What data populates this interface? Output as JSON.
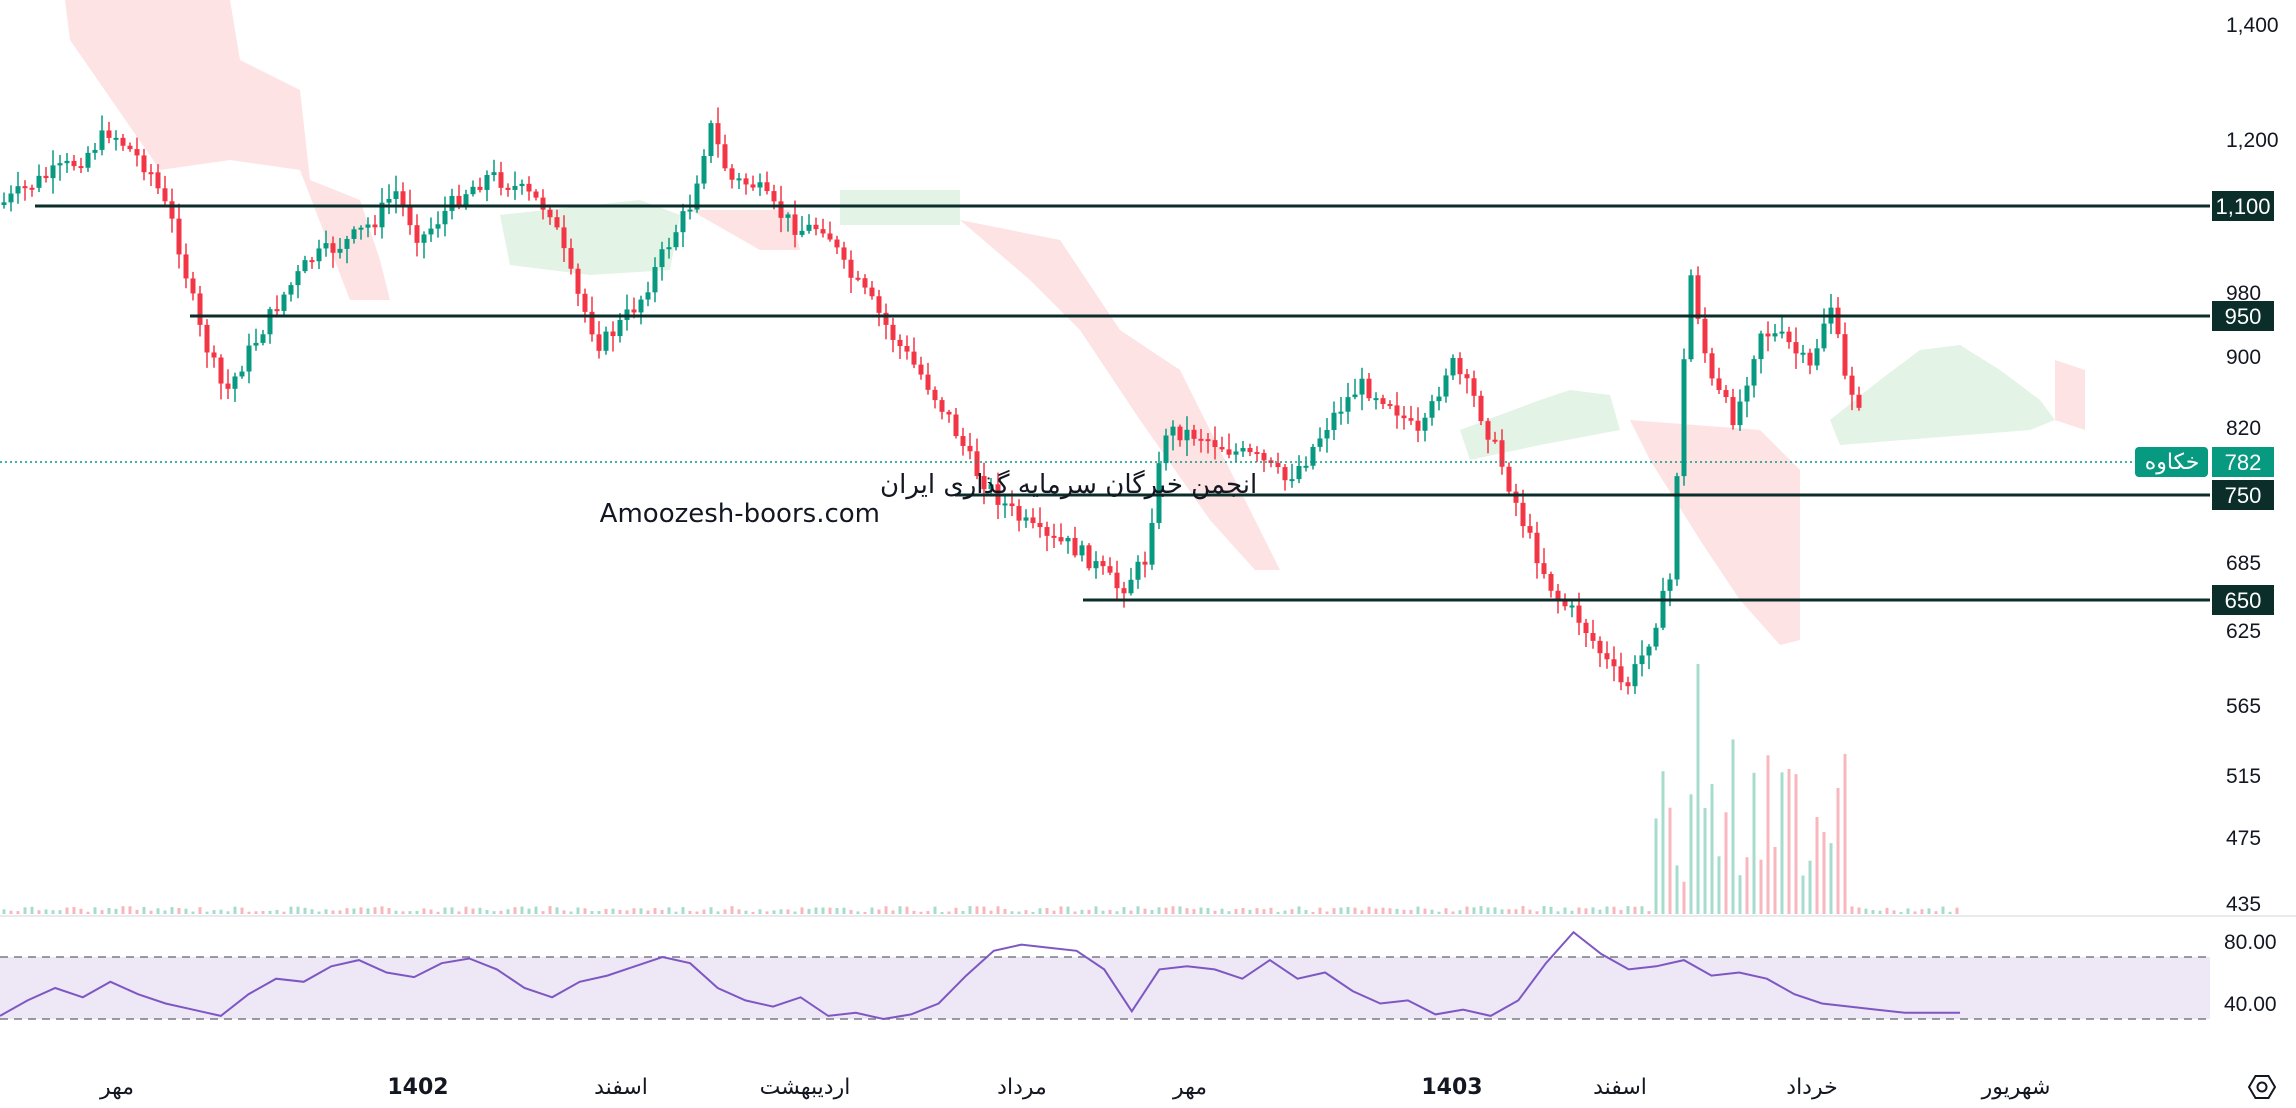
{
  "chart_data": {
    "type": "candlestick",
    "symbol": "خکاوه",
    "price_axis": {
      "ticks": [
        "1,400",
        "1,200",
        "980",
        "900",
        "820",
        "685",
        "625",
        "565",
        "515",
        "475",
        "435"
      ]
    },
    "last_price": "782",
    "horizontal_levels": [
      "1,100",
      "950",
      "750",
      "650"
    ],
    "time_axis": {
      "labels": [
        "مهر",
        "1402",
        "اسفند",
        "اردیبهشت",
        "مرداد",
        "مهر",
        "1403",
        "اسفند",
        "خرداد",
        "شهریور"
      ],
      "bold": [
        "1402",
        "1403"
      ]
    },
    "watermark": {
      "line1": "انجمن خبرگان سرمایه گذاری ایران",
      "line2": "Amoozesh-boors.com"
    },
    "indicators": {
      "ichimoku_cloud": true,
      "volume": true
    },
    "rsi": {
      "ticks": [
        "80.00",
        "40.00"
      ],
      "band": [
        70,
        30
      ],
      "values": [
        32,
        42,
        50,
        44,
        54,
        46,
        40,
        36,
        32,
        46,
        56,
        54,
        64,
        68,
        60,
        57,
        66,
        69,
        62,
        50,
        44,
        54,
        58,
        64,
        70,
        66,
        50,
        42,
        38,
        44,
        32,
        34,
        30,
        33,
        40,
        58,
        74,
        78,
        76,
        74,
        62,
        35,
        62,
        64,
        62,
        56,
        68,
        56,
        60,
        48,
        40,
        42,
        33,
        36,
        32,
        42,
        66,
        86,
        72,
        62,
        64,
        68,
        58,
        60,
        56,
        46,
        40,
        38,
        36,
        34,
        34,
        34
      ]
    },
    "colors": {
      "up": "#089981",
      "down": "#f23645",
      "level_line": "#0b2e2a",
      "price_label": "#089981",
      "rsi_line": "#7e57c2",
      "rsi_band": "#ede7f6",
      "cloud_bull": "#e3f3e6",
      "cloud_bear": "#fde3e4"
    },
    "grid": false
  }
}
